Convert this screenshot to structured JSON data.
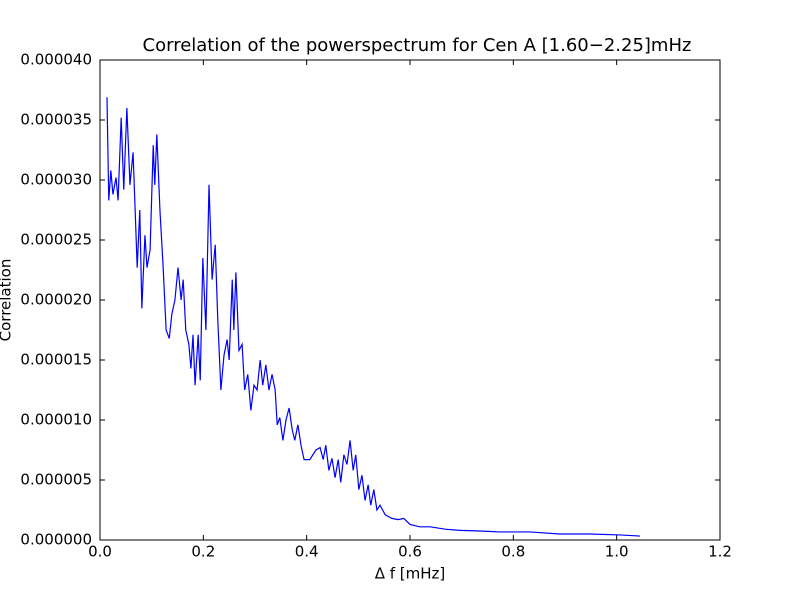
{
  "chart_data": {
    "type": "line",
    "title": "Correlation of the powerspectrum for Cen A [1.60−2.25]mHz",
    "xlabel": "Δ f [mHz]",
    "ylabel": "Correlation",
    "x": [
      0.0135,
      0.017,
      0.021,
      0.025,
      0.031,
      0.035,
      0.041,
      0.046,
      0.052,
      0.058,
      0.064,
      0.072,
      0.077,
      0.081,
      0.087,
      0.091,
      0.097,
      0.103,
      0.106,
      0.11,
      0.116,
      0.122,
      0.128,
      0.134,
      0.139,
      0.145,
      0.151,
      0.157,
      0.161,
      0.166,
      0.172,
      0.176,
      0.18,
      0.184,
      0.19,
      0.194,
      0.199,
      0.205,
      0.211,
      0.217,
      0.223,
      0.228,
      0.234,
      0.24,
      0.246,
      0.25,
      0.256,
      0.259,
      0.263,
      0.269,
      0.275,
      0.28,
      0.286,
      0.292,
      0.298,
      0.304,
      0.31,
      0.315,
      0.321,
      0.327,
      0.333,
      0.339,
      0.343,
      0.348,
      0.354,
      0.36,
      0.366,
      0.372,
      0.377,
      0.383,
      0.389,
      0.395,
      0.406,
      0.418,
      0.426,
      0.432,
      0.437,
      0.443,
      0.449,
      0.455,
      0.461,
      0.466,
      0.472,
      0.478,
      0.484,
      0.49,
      0.495,
      0.501,
      0.507,
      0.513,
      0.519,
      0.524,
      0.53,
      0.536,
      0.542,
      0.552,
      0.565,
      0.577,
      0.588,
      0.6,
      0.619,
      0.639,
      0.668,
      0.697,
      0.735,
      0.774,
      0.832,
      0.89,
      0.948,
      1.006,
      1.045
    ],
    "series": [
      {
        "name": "Correlation",
        "color": "#0000ff",
        "values": [
          3.69e-05,
          2.83e-05,
          3.08e-05,
          2.88e-05,
          3.02e-05,
          2.83e-05,
          3.52e-05,
          2.92e-05,
          3.6e-05,
          2.96e-05,
          3.23e-05,
          2.27e-05,
          2.75e-05,
          1.93e-05,
          2.54e-05,
          2.27e-05,
          2.42e-05,
          3.29e-05,
          2.96e-05,
          3.38e-05,
          2.75e-05,
          2.29e-05,
          1.75e-05,
          1.68e-05,
          1.88e-05,
          2e-05,
          2.27e-05,
          2e-05,
          2.17e-05,
          1.75e-05,
          1.63e-05,
          1.43e-05,
          1.71e-05,
          1.29e-05,
          1.71e-05,
          1.33e-05,
          2.35e-05,
          1.75e-05,
          2.96e-05,
          2.17e-05,
          2.46e-05,
          1.83e-05,
          1.25e-05,
          1.54e-05,
          1.67e-05,
          1.5e-05,
          2.17e-05,
          1.75e-05,
          2.23e-05,
          1.58e-05,
          1.63e-05,
          1.25e-05,
          1.38e-05,
          1.08e-05,
          1.29e-05,
          1.25e-05,
          1.5e-05,
          1.29e-05,
          1.46e-05,
          1.25e-05,
          1.38e-05,
          1.25e-05,
          9.6e-06,
          1.02e-05,
          8.3e-06,
          1e-05,
          1.1e-05,
          9.2e-06,
          8.3e-06,
          9.6e-06,
          7.9e-06,
          6.7e-06,
          6.7e-06,
          7.5e-06,
          7.7e-06,
          6.7e-06,
          7.9e-06,
          5.8e-06,
          6.8e-06,
          5.2e-06,
          6.7e-06,
          4.8e-06,
          7.1e-06,
          6.3e-06,
          8.3e-06,
          5.8e-06,
          7.1e-06,
          4.2e-06,
          5.4e-06,
          3.3e-06,
          4.6e-06,
          2.9e-06,
          4.2e-06,
          2.5e-06,
          2.9e-06,
          2.1e-06,
          1.8e-06,
          1.7e-06,
          1.8e-06,
          1.3e-06,
          1.1e-06,
          1.1e-06,
          9e-07,
          8e-07,
          7.5e-07,
          6.7e-07,
          6.7e-07,
          5e-07,
          5e-07,
          4.2e-07,
          3.3e-07
        ]
      }
    ],
    "xlim": [
      0,
      1.2
    ],
    "xticks": [
      {
        "value": 0,
        "label": "0.0"
      },
      0.2,
      0.4,
      0.6,
      0.8,
      {
        "value": 1,
        "label": "1.0"
      },
      1.2
    ],
    "ylim": [
      0,
      4e-05
    ],
    "yticks": [
      {
        "value": 0,
        "label": "0.000000"
      },
      {
        "value": 5e-06,
        "label": "0.000005"
      },
      {
        "value": 1e-05,
        "label": "0.000010"
      },
      {
        "value": 1.5e-05,
        "label": "0.000015"
      },
      {
        "value": 2e-05,
        "label": "0.000020"
      },
      {
        "value": 2.5e-05,
        "label": "0.000025"
      },
      {
        "value": 3e-05,
        "label": "0.000030"
      },
      {
        "value": 3.5e-05,
        "label": "0.000035"
      },
      {
        "value": 4e-05,
        "label": "0.000040"
      }
    ],
    "grid": false
  }
}
